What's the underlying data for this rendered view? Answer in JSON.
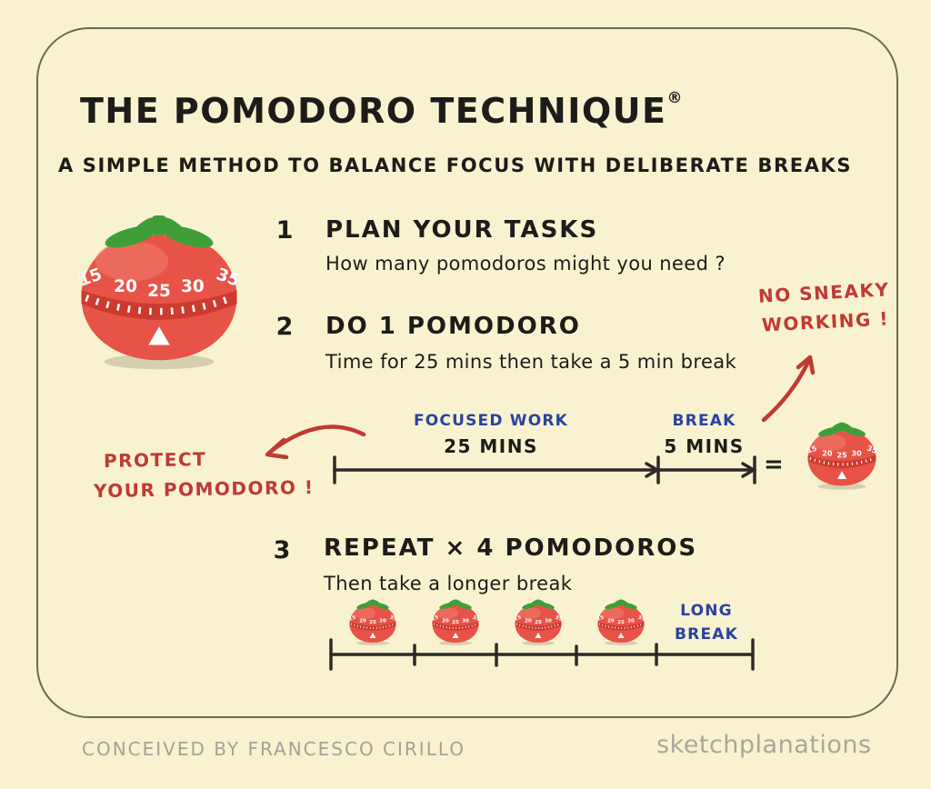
{
  "header": {
    "title": "THE POMODORO TECHNIQUE",
    "registered_mark": "®",
    "subtitle": "A SIMPLE METHOD TO BALANCE FOCUS WITH DELIBERATE BREAKS"
  },
  "steps": [
    {
      "number": "1",
      "heading": "PLAN YOUR TASKS",
      "detail": "How many pomodoros might you need ?"
    },
    {
      "number": "2",
      "heading": "DO 1 POMODORO",
      "detail": "Time for 25 mins then take a 5 min break"
    },
    {
      "number": "3",
      "heading": "REPEAT × 4 POMODOROS",
      "detail": "Then take a longer break"
    }
  ],
  "annotations": {
    "no_sneaky_line1": "NO SNEAKY",
    "no_sneaky_line2": "WORKING !",
    "protect_line1": "PROTECT",
    "protect_line2": "YOUR POMODORO !",
    "annotation_color": "#bf3a33"
  },
  "timeline_pomodoro": {
    "focused_label": "FOCUSED WORK",
    "focused_duration": "25 MINS",
    "break_label": "BREAK",
    "break_duration": "5 MINS",
    "equals_sign": "="
  },
  "timeline_repeat": {
    "long_break_line1": "LONG",
    "long_break_line2": "BREAK",
    "tomato_count": 4
  },
  "timer_dial": {
    "numbers": [
      "15",
      "20",
      "25",
      "30",
      "35"
    ]
  },
  "colors": {
    "background": "#f8f2d1",
    "border": "#6a6a55",
    "ink": "#1d1c18",
    "annotation_red": "#bf3a33",
    "label_blue": "#2b429f",
    "tomato_red": "#e85348",
    "tomato_band": "#cd3a2e",
    "leaf_green": "#3f9e38",
    "footer_gray": "#a3a295"
  },
  "footer": {
    "credit": "CONCEIVED BY FRANCESCO CIRILLO",
    "brand": "sketchplanations"
  }
}
